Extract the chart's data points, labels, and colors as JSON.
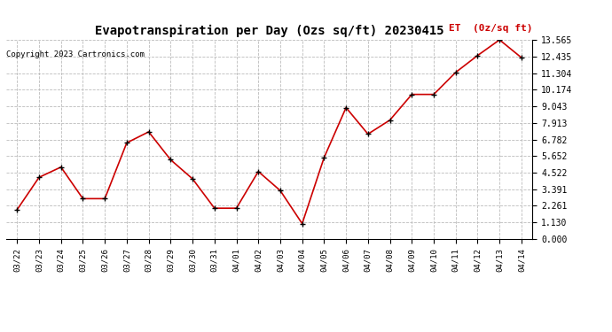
{
  "title": "Evapotranspiration per Day (Ozs sq/ft) 20230415",
  "copyright": "Copyright 2023 Cartronics.com",
  "legend_label": "ET  (0z/sq ft)",
  "dates": [
    "03/22",
    "03/23",
    "03/24",
    "03/25",
    "03/26",
    "03/27",
    "03/28",
    "03/29",
    "03/30",
    "03/31",
    "04/01",
    "04/02",
    "04/03",
    "04/04",
    "04/05",
    "04/06",
    "04/07",
    "04/08",
    "04/09",
    "04/10",
    "04/11",
    "04/12",
    "04/13",
    "04/14"
  ],
  "values": [
    2.0,
    4.2,
    4.9,
    2.75,
    2.75,
    6.55,
    7.3,
    5.4,
    4.1,
    2.1,
    2.1,
    4.6,
    3.3,
    1.05,
    5.55,
    8.95,
    7.15,
    8.1,
    9.85,
    9.85,
    11.35,
    12.5,
    13.565,
    12.35
  ],
  "yticks": [
    0.0,
    1.13,
    2.261,
    3.391,
    4.522,
    5.652,
    6.782,
    7.913,
    9.043,
    10.174,
    11.304,
    12.435,
    13.565
  ],
  "ylim": [
    0.0,
    13.565
  ],
  "line_color": "#cc0000",
  "marker_color": "#000000",
  "grid_color": "#bbbbbb",
  "background_color": "#ffffff",
  "title_fontsize": 10,
  "copyright_fontsize": 6.5,
  "legend_color": "#cc0000",
  "legend_fontsize": 8,
  "tick_fontsize": 6.5,
  "ytick_fontsize": 7
}
